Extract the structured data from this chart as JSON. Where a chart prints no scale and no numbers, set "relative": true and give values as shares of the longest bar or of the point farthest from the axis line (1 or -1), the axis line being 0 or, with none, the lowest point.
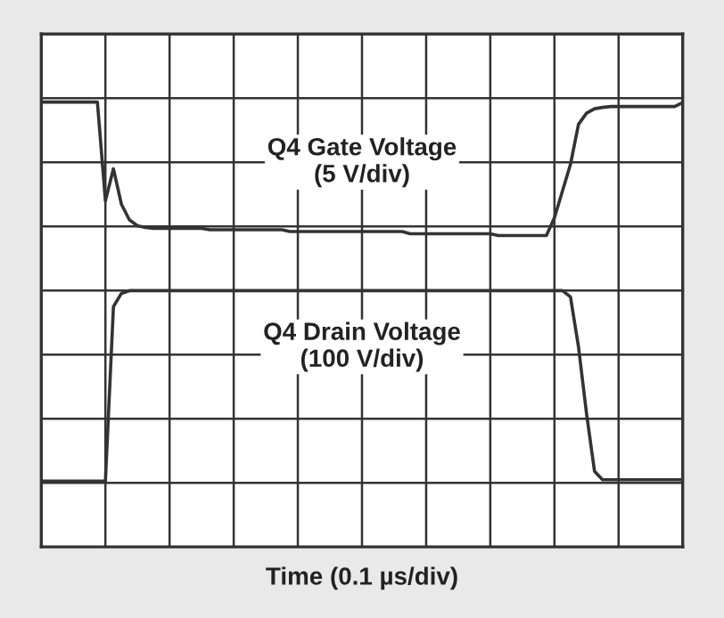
{
  "chart_data": {
    "type": "line",
    "relative": true,
    "xlabel": "Time (0.1 µs/div)",
    "grid": true,
    "tick_labels": false,
    "legend": false,
    "categories": [
      null,
      null,
      null,
      null,
      null,
      null,
      null,
      null,
      null,
      null,
      null,
      null,
      null,
      null,
      null,
      null,
      null,
      null,
      null,
      null,
      null,
      null,
      null,
      null,
      null,
      null,
      null,
      null,
      null,
      null,
      null,
      null,
      null,
      null,
      null,
      null,
      null,
      null,
      null,
      null,
      null,
      null,
      null,
      null,
      null,
      null,
      null,
      null,
      null,
      null,
      null,
      null,
      null,
      null,
      null,
      null,
      null,
      null,
      null,
      null,
      null,
      null,
      null,
      null,
      null,
      null,
      null,
      null,
      null,
      null,
      null,
      null,
      null,
      null,
      null,
      null,
      null,
      null,
      null,
      null,
      null
    ],
    "series": [
      {
        "name": "Q4 Gate Voltage\n(5 V/div)",
        "color": "#333333",
        "values": [
          1.0,
          1.0,
          1.0,
          1.0,
          1.0,
          1.0,
          1.0,
          1.0,
          0.778,
          0.85,
          0.77,
          0.735,
          0.722,
          0.718,
          0.716,
          0.716,
          0.716,
          0.716,
          0.716,
          0.716,
          0.716,
          0.713,
          0.713,
          0.713,
          0.713,
          0.713,
          0.713,
          0.713,
          0.713,
          0.713,
          0.713,
          0.709,
          0.709,
          0.709,
          0.709,
          0.709,
          0.709,
          0.709,
          0.709,
          0.709,
          0.709,
          0.709,
          0.709,
          0.709,
          0.709,
          0.709,
          0.704,
          0.704,
          0.704,
          0.704,
          0.704,
          0.704,
          0.704,
          0.704,
          0.704,
          0.704,
          0.704,
          0.7,
          0.7,
          0.7,
          0.7,
          0.7,
          0.7,
          0.7,
          0.74,
          0.8,
          0.86,
          0.95,
          0.975,
          0.985,
          0.988,
          0.99,
          0.99,
          0.99,
          0.99,
          0.99,
          0.99,
          0.99,
          0.99,
          0.99,
          0.999
        ]
      },
      {
        "name": "Q4 Drain Voltage\n(100 V/div)",
        "color": "#333333",
        "values": [
          0.148,
          0.148,
          0.148,
          0.148,
          0.148,
          0.148,
          0.148,
          0.148,
          0.148,
          0.54,
          0.57,
          0.576,
          0.576,
          0.576,
          0.576,
          0.576,
          0.576,
          0.576,
          0.576,
          0.576,
          0.576,
          0.576,
          0.576,
          0.576,
          0.576,
          0.576,
          0.576,
          0.576,
          0.576,
          0.576,
          0.576,
          0.576,
          0.576,
          0.576,
          0.576,
          0.576,
          0.576,
          0.576,
          0.576,
          0.576,
          0.576,
          0.576,
          0.576,
          0.576,
          0.576,
          0.576,
          0.576,
          0.576,
          0.576,
          0.576,
          0.576,
          0.576,
          0.576,
          0.576,
          0.576,
          0.576,
          0.576,
          0.576,
          0.576,
          0.576,
          0.576,
          0.576,
          0.576,
          0.576,
          0.576,
          0.576,
          0.562,
          0.45,
          0.3,
          0.17,
          0.151,
          0.151,
          0.151,
          0.151,
          0.151,
          0.151,
          0.151,
          0.151,
          0.151,
          0.151,
          0.151
        ]
      }
    ]
  }
}
